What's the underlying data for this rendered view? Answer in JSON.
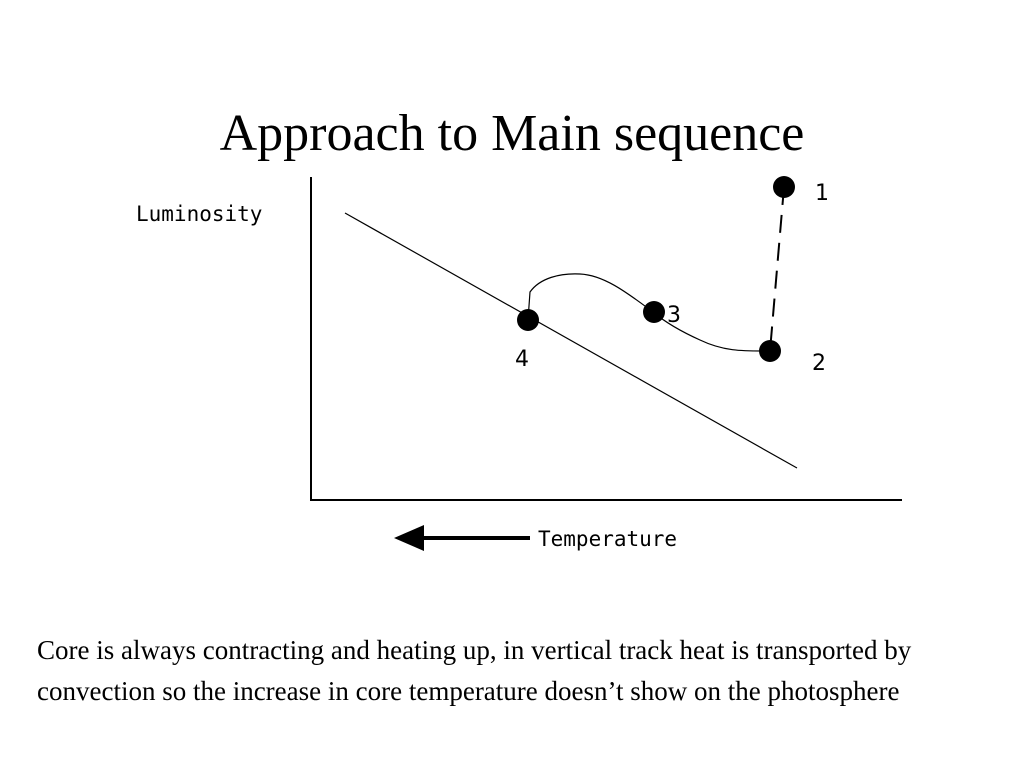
{
  "slide": {
    "title": "Approach to Main sequence",
    "caption": "Core is always contracting and heating up, in vertical track heat is transported by convection so the increase in core temperature doesn’t show on the photosphere"
  },
  "diagram": {
    "y_axis_label": "Luminosity",
    "x_axis_label": "Temperature",
    "x_axis_direction_note_icon": "left-arrow-icon",
    "points": [
      {
        "label": "1"
      },
      {
        "label": "2"
      },
      {
        "label": "3"
      },
      {
        "label": "4"
      }
    ],
    "colors": {
      "ink": "#000000",
      "background": "#ffffff"
    }
  }
}
